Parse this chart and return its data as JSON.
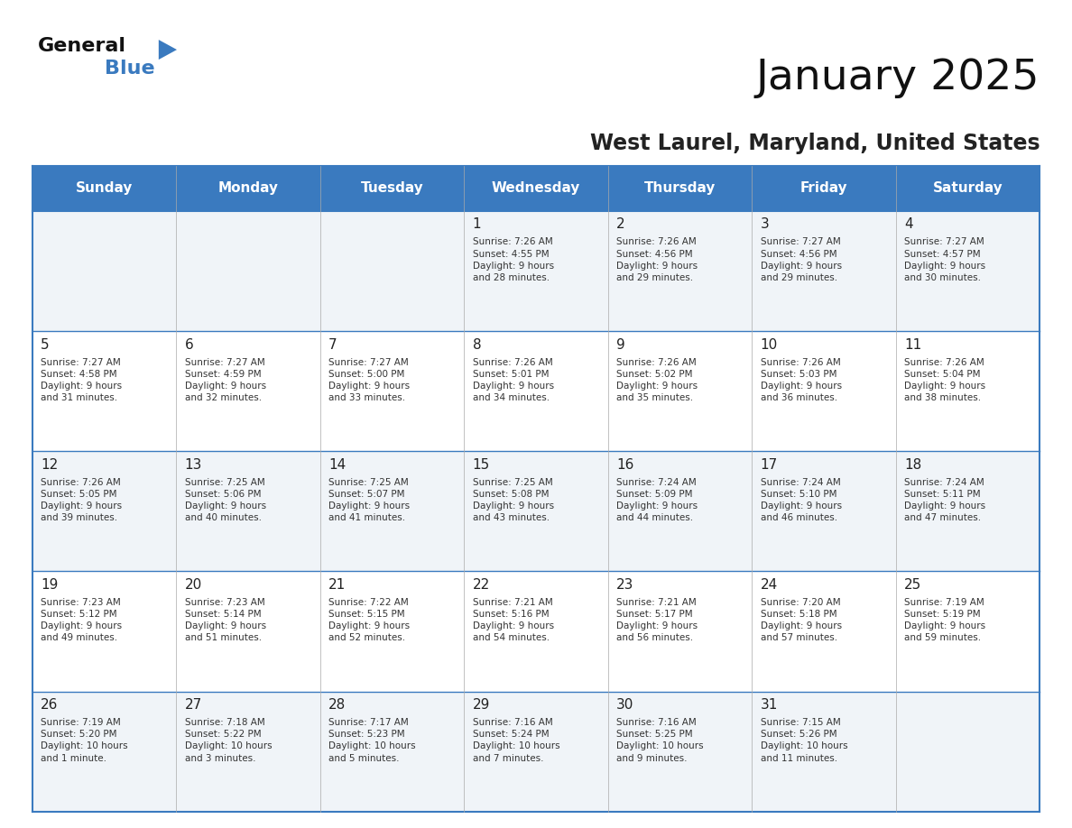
{
  "title": "January 2025",
  "subtitle": "West Laurel, Maryland, United States",
  "days_of_week": [
    "Sunday",
    "Monday",
    "Tuesday",
    "Wednesday",
    "Thursday",
    "Friday",
    "Saturday"
  ],
  "header_bg": "#3a7abf",
  "header_text": "#ffffff",
  "cell_bg_even": "#f0f4f8",
  "cell_bg_odd": "#ffffff",
  "border_color": "#3a7abf",
  "day_number_color": "#222222",
  "cell_text_color": "#333333",
  "title_color": "#111111",
  "subtitle_color": "#222222",
  "logo_general_color": "#111111",
  "logo_blue_color": "#3a7abf",
  "weeks": [
    [
      {
        "day": null,
        "info": null
      },
      {
        "day": null,
        "info": null
      },
      {
        "day": null,
        "info": null
      },
      {
        "day": 1,
        "info": "Sunrise: 7:26 AM\nSunset: 4:55 PM\nDaylight: 9 hours\nand 28 minutes."
      },
      {
        "day": 2,
        "info": "Sunrise: 7:26 AM\nSunset: 4:56 PM\nDaylight: 9 hours\nand 29 minutes."
      },
      {
        "day": 3,
        "info": "Sunrise: 7:27 AM\nSunset: 4:56 PM\nDaylight: 9 hours\nand 29 minutes."
      },
      {
        "day": 4,
        "info": "Sunrise: 7:27 AM\nSunset: 4:57 PM\nDaylight: 9 hours\nand 30 minutes."
      }
    ],
    [
      {
        "day": 5,
        "info": "Sunrise: 7:27 AM\nSunset: 4:58 PM\nDaylight: 9 hours\nand 31 minutes."
      },
      {
        "day": 6,
        "info": "Sunrise: 7:27 AM\nSunset: 4:59 PM\nDaylight: 9 hours\nand 32 minutes."
      },
      {
        "day": 7,
        "info": "Sunrise: 7:27 AM\nSunset: 5:00 PM\nDaylight: 9 hours\nand 33 minutes."
      },
      {
        "day": 8,
        "info": "Sunrise: 7:26 AM\nSunset: 5:01 PM\nDaylight: 9 hours\nand 34 minutes."
      },
      {
        "day": 9,
        "info": "Sunrise: 7:26 AM\nSunset: 5:02 PM\nDaylight: 9 hours\nand 35 minutes."
      },
      {
        "day": 10,
        "info": "Sunrise: 7:26 AM\nSunset: 5:03 PM\nDaylight: 9 hours\nand 36 minutes."
      },
      {
        "day": 11,
        "info": "Sunrise: 7:26 AM\nSunset: 5:04 PM\nDaylight: 9 hours\nand 38 minutes."
      }
    ],
    [
      {
        "day": 12,
        "info": "Sunrise: 7:26 AM\nSunset: 5:05 PM\nDaylight: 9 hours\nand 39 minutes."
      },
      {
        "day": 13,
        "info": "Sunrise: 7:25 AM\nSunset: 5:06 PM\nDaylight: 9 hours\nand 40 minutes."
      },
      {
        "day": 14,
        "info": "Sunrise: 7:25 AM\nSunset: 5:07 PM\nDaylight: 9 hours\nand 41 minutes."
      },
      {
        "day": 15,
        "info": "Sunrise: 7:25 AM\nSunset: 5:08 PM\nDaylight: 9 hours\nand 43 minutes."
      },
      {
        "day": 16,
        "info": "Sunrise: 7:24 AM\nSunset: 5:09 PM\nDaylight: 9 hours\nand 44 minutes."
      },
      {
        "day": 17,
        "info": "Sunrise: 7:24 AM\nSunset: 5:10 PM\nDaylight: 9 hours\nand 46 minutes."
      },
      {
        "day": 18,
        "info": "Sunrise: 7:24 AM\nSunset: 5:11 PM\nDaylight: 9 hours\nand 47 minutes."
      }
    ],
    [
      {
        "day": 19,
        "info": "Sunrise: 7:23 AM\nSunset: 5:12 PM\nDaylight: 9 hours\nand 49 minutes."
      },
      {
        "day": 20,
        "info": "Sunrise: 7:23 AM\nSunset: 5:14 PM\nDaylight: 9 hours\nand 51 minutes."
      },
      {
        "day": 21,
        "info": "Sunrise: 7:22 AM\nSunset: 5:15 PM\nDaylight: 9 hours\nand 52 minutes."
      },
      {
        "day": 22,
        "info": "Sunrise: 7:21 AM\nSunset: 5:16 PM\nDaylight: 9 hours\nand 54 minutes."
      },
      {
        "day": 23,
        "info": "Sunrise: 7:21 AM\nSunset: 5:17 PM\nDaylight: 9 hours\nand 56 minutes."
      },
      {
        "day": 24,
        "info": "Sunrise: 7:20 AM\nSunset: 5:18 PM\nDaylight: 9 hours\nand 57 minutes."
      },
      {
        "day": 25,
        "info": "Sunrise: 7:19 AM\nSunset: 5:19 PM\nDaylight: 9 hours\nand 59 minutes."
      }
    ],
    [
      {
        "day": 26,
        "info": "Sunrise: 7:19 AM\nSunset: 5:20 PM\nDaylight: 10 hours\nand 1 minute."
      },
      {
        "day": 27,
        "info": "Sunrise: 7:18 AM\nSunset: 5:22 PM\nDaylight: 10 hours\nand 3 minutes."
      },
      {
        "day": 28,
        "info": "Sunrise: 7:17 AM\nSunset: 5:23 PM\nDaylight: 10 hours\nand 5 minutes."
      },
      {
        "day": 29,
        "info": "Sunrise: 7:16 AM\nSunset: 5:24 PM\nDaylight: 10 hours\nand 7 minutes."
      },
      {
        "day": 30,
        "info": "Sunrise: 7:16 AM\nSunset: 5:25 PM\nDaylight: 10 hours\nand 9 minutes."
      },
      {
        "day": 31,
        "info": "Sunrise: 7:15 AM\nSunset: 5:26 PM\nDaylight: 10 hours\nand 11 minutes."
      },
      {
        "day": null,
        "info": null
      }
    ]
  ]
}
